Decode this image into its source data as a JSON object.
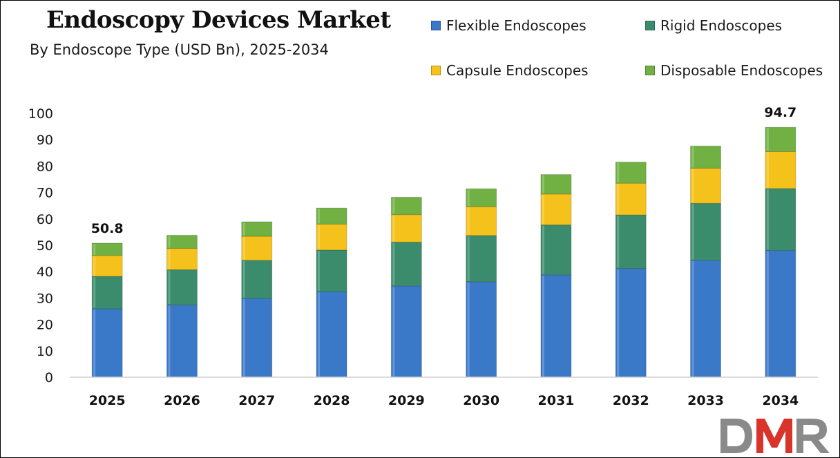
{
  "chart_data": {
    "type": "bar",
    "stacked": true,
    "title": "Endoscopy Devices Market",
    "subtitle": "By Endoscope Type (USD Bn), 2025-2034",
    "categories": [
      "2025",
      "2026",
      "2027",
      "2028",
      "2029",
      "2030",
      "2031",
      "2032",
      "2033",
      "2034"
    ],
    "series": [
      {
        "name": "Flexible Endoscopes",
        "color": "#3a78c8",
        "values": [
          25.9,
          27.4,
          29.9,
          32.4,
          34.6,
          36.2,
          38.8,
          41.2,
          44.3,
          48.0
        ]
      },
      {
        "name": "Rigid Endoscopes",
        "color": "#3a8c6c",
        "values": [
          12.3,
          13.3,
          14.4,
          15.8,
          16.6,
          17.5,
          18.9,
          20.3,
          21.6,
          23.5
        ]
      },
      {
        "name": "Capsule Endoscopes",
        "color": "#f4c21a",
        "values": [
          7.9,
          8.1,
          9.1,
          9.8,
          10.4,
          10.9,
          11.7,
          12.0,
          13.3,
          14.0
        ]
      },
      {
        "name": "Disposable Endoscopes",
        "color": "#71b043",
        "values": [
          4.7,
          5.0,
          5.5,
          6.1,
          6.6,
          6.8,
          7.4,
          8.0,
          8.4,
          9.2
        ]
      }
    ],
    "ylim": [
      0,
      100
    ],
    "yticks": [
      "0",
      "10",
      "20",
      "30",
      "40",
      "50",
      "60",
      "70",
      "80",
      "90",
      "100"
    ],
    "data_labels": [
      {
        "category": "2025",
        "text": "50.8"
      },
      {
        "category": "2034",
        "text": "94.7"
      }
    ],
    "legend": "top-right",
    "grid": false
  },
  "legend_items": [
    {
      "label": "Flexible Endoscopes",
      "color": "#3a78c8"
    },
    {
      "label": "Rigid Endoscopes",
      "color": "#3a8c6c"
    },
    {
      "label": "Capsule Endoscopes",
      "color": "#f4c21a"
    },
    {
      "label": "Disposable Endoscopes",
      "color": "#71b043"
    }
  ],
  "logo": {
    "text": "DMR",
    "colors": [
      "#8a8a8a",
      "#d9342b"
    ]
  }
}
